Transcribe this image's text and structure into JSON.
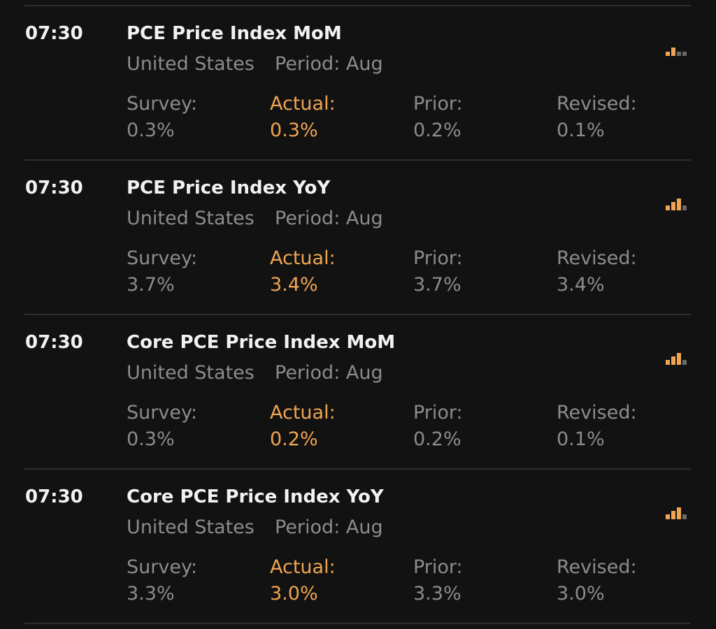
{
  "events": [
    {
      "time": "07:30",
      "title": "PCE Price Index MoM",
      "country": "United States",
      "period": "Period: Aug",
      "fields": [
        {
          "label": "Survey:",
          "value": "0.3%"
        },
        {
          "label": "Actual:",
          "value": "0.3%"
        },
        {
          "label": "Prior:",
          "value": "0.2%"
        },
        {
          "label": "Revised:",
          "value": "0.1%"
        }
      ]
    },
    {
      "time": "07:30",
      "title": "PCE Price Index YoY",
      "country": "United States",
      "period": "Period: Aug",
      "fields": [
        {
          "label": "Survey:",
          "value": "3.7%"
        },
        {
          "label": "Actual:",
          "value": "3.4%"
        },
        {
          "label": "Prior:",
          "value": "3.7%"
        },
        {
          "label": "Revised:",
          "value": "3.4%"
        }
      ]
    },
    {
      "time": "07:30",
      "title": "Core PCE Price Index MoM",
      "country": "United States",
      "period": "Period: Aug",
      "fields": [
        {
          "label": "Survey:",
          "value": "0.3%"
        },
        {
          "label": "Actual:",
          "value": "0.2%"
        },
        {
          "label": "Prior:",
          "value": "0.2%"
        },
        {
          "label": "Revised:",
          "value": "0.1%"
        }
      ]
    },
    {
      "time": "07:30",
      "title": "Core PCE Price Index YoY",
      "country": "United States",
      "period": "Period: Aug",
      "fields": [
        {
          "label": "Survey:",
          "value": "3.3%"
        },
        {
          "label": "Actual:",
          "value": "3.0%"
        },
        {
          "label": "Prior:",
          "value": "3.3%"
        },
        {
          "label": "Revised:",
          "value": "3.0%"
        }
      ]
    }
  ]
}
